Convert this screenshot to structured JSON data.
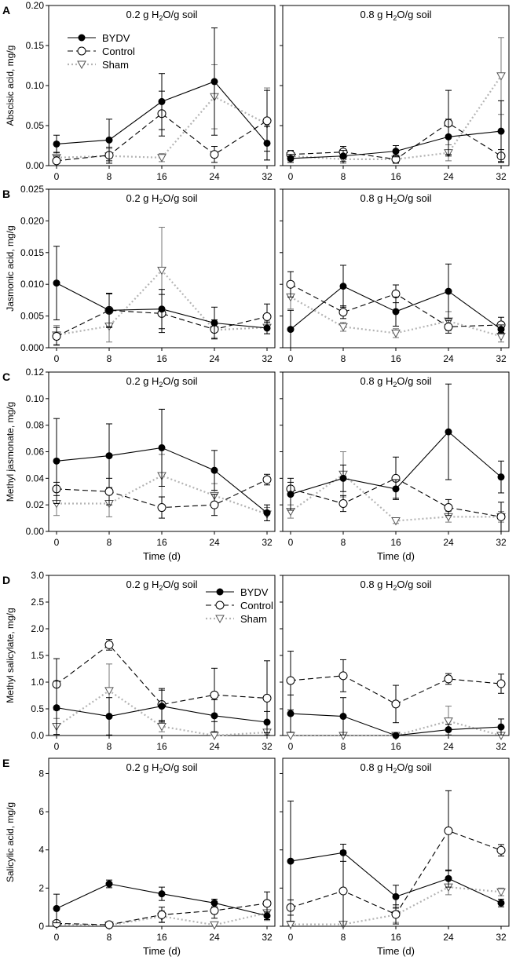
{
  "figure": {
    "x_axis_label": "Time (d)",
    "legend_labels": [
      "BYDV",
      "Control",
      "Sham"
    ]
  },
  "chart_data": [
    {
      "panel": "A",
      "type": "line",
      "ylabel": "Abscisic acid, mg/g",
      "ylim": [
        0,
        0.2
      ],
      "yticks": [
        "0.00",
        "0.05",
        "0.10",
        "0.15",
        "0.20"
      ],
      "x": [
        0,
        8,
        16,
        24,
        32
      ],
      "xlabel": "",
      "legend_in": "left",
      "subplots": [
        {
          "title": "0.2 g H2O/g soil",
          "series": [
            {
              "name": "BYDV",
              "values": [
                0.027,
                0.032,
                0.08,
                0.105,
                0.028
              ],
              "err": [
                0.011,
                0.026,
                0.035,
                0.067,
                0.021
              ]
            },
            {
              "name": "Control",
              "values": [
                0.006,
                0.013,
                0.065,
                0.014,
                0.056
              ],
              "err": [
                0.006,
                0.01,
                0.028,
                0.01,
                0.038
              ]
            },
            {
              "name": "Sham",
              "values": [
                0.01,
                0.012,
                0.01,
                0.086,
                0.052
              ],
              "err": [
                0.007,
                0.009,
                0.005,
                0.04,
                0.045
              ]
            }
          ]
        },
        {
          "title": "0.8 g H2O/g soil",
          "series": [
            {
              "name": "BYDV",
              "values": [
                0.009,
                0.012,
                0.018,
                0.036,
                0.043
              ],
              "err": [
                0.005,
                0.007,
                0.007,
                0.022,
                0.038
              ]
            },
            {
              "name": "Control",
              "values": [
                0.014,
                0.017,
                0.008,
                0.053,
                0.012
              ],
              "err": [
                0.005,
                0.007,
                0.005,
                0.041,
                0.008
              ]
            },
            {
              "name": "Sham",
              "values": [
                0.012,
                0.008,
                0.008,
                0.016,
                0.112
              ],
              "err": [
                0.006,
                0.005,
                0.004,
                0.01,
                0.048
              ]
            }
          ]
        }
      ]
    },
    {
      "panel": "B",
      "type": "line",
      "ylabel": "Jasmonic acid, mg/g",
      "ylim": [
        0,
        0.025
      ],
      "yticks": [
        "0.000",
        "0.005",
        "0.010",
        "0.015",
        "0.020",
        "0.025"
      ],
      "x": [
        0,
        8,
        16,
        24,
        32
      ],
      "xlabel": "",
      "subplots": [
        {
          "title": "0.2 g H2O/g soil",
          "series": [
            {
              "name": "BYDV",
              "values": [
                0.0102,
                0.0059,
                0.0061,
                0.0039,
                0.0031
              ],
              "err": [
                0.0058,
                0.0026,
                0.0031,
                0.0025,
                0.0009
              ]
            },
            {
              "name": "Control",
              "values": [
                0.0018,
                0.0059,
                0.0054,
                0.0029,
                0.0049
              ],
              "err": [
                0.0014,
                0.0027,
                0.003,
                0.0015,
                0.002
              ]
            },
            {
              "name": "Sham",
              "values": [
                0.002,
                0.0034,
                0.0122,
                0.0028,
                0.0032
              ],
              "err": [
                0.0015,
                0.0025,
                0.0068,
                0.0012,
                0.001
              ]
            }
          ]
        },
        {
          "title": "0.8 g H2O/g soil",
          "series": [
            {
              "name": "BYDV",
              "values": [
                0.0029,
                0.0097,
                0.0057,
                0.0089,
                0.0029
              ],
              "err": [
                0.003,
                0.0033,
                0.0023,
                0.0043,
                0.0007
              ]
            },
            {
              "name": "Control",
              "values": [
                0.01,
                0.0056,
                0.0085,
                0.0033,
                0.0036
              ],
              "err": [
                0.002,
                0.001,
                0.0014,
                0.001,
                0.0012
              ]
            },
            {
              "name": "Sham",
              "values": [
                0.008,
                0.0033,
                0.0023,
                0.0042,
                0.0018
              ],
              "err": [
                0.0019,
                0.0007,
                0.0007,
                0.0015,
                0.0009
              ]
            }
          ]
        }
      ]
    },
    {
      "panel": "C",
      "type": "line",
      "ylabel": "Methyl jasmonate, mg/g",
      "ylim": [
        0,
        0.12
      ],
      "yticks": [
        "0.00",
        "0.02",
        "0.04",
        "0.06",
        "0.08",
        "0.10",
        "0.12"
      ],
      "x": [
        0,
        8,
        16,
        24,
        32
      ],
      "xlabel": "Time (d)",
      "subplots": [
        {
          "title": "0.2 g H2O/g soil",
          "series": [
            {
              "name": "BYDV",
              "values": [
                0.053,
                0.057,
                0.063,
                0.046,
                0.014
              ],
              "err": [
                0.032,
                0.024,
                0.029,
                0.015,
                0.006
              ]
            },
            {
              "name": "Control",
              "values": [
                0.032,
                0.03,
                0.018,
                0.02,
                0.039
              ],
              "err": [
                0.005,
                0.01,
                0.008,
                0.008,
                0.004
              ]
            },
            {
              "name": "Sham",
              "values": [
                0.021,
                0.021,
                0.042,
                0.027,
                0.013
              ],
              "err": [
                0.009,
                0.01,
                0.016,
                0.009,
                0.005
              ]
            }
          ]
        },
        {
          "title": "0.8 g H2O/g soil",
          "series": [
            {
              "name": "BYDV",
              "values": [
                0.028,
                0.04,
                0.032,
                0.075,
                0.041
              ],
              "err": [
                0.012,
                0.01,
                0.007,
                0.036,
                0.012
              ]
            },
            {
              "name": "Control",
              "values": [
                0.032,
                0.021,
                0.04,
                0.018,
                0.011
              ],
              "err": [
                0.005,
                0.006,
                0.016,
                0.006,
                0.011
              ]
            },
            {
              "name": "Sham",
              "values": [
                0.015,
                0.043,
                0.008,
                0.011,
                0.011
              ],
              "err": [
                0.005,
                0.017,
                0.002,
                0.004,
                0.004
              ]
            }
          ]
        }
      ]
    },
    {
      "panel": "D",
      "type": "line",
      "ylabel": "Methyl salicylate, mg/g",
      "ylim": [
        0,
        3.0
      ],
      "yticks": [
        "0.0",
        "0.5",
        "1.0",
        "1.5",
        "2.0",
        "2.5",
        "3.0"
      ],
      "x": [
        0,
        8,
        16,
        24,
        32
      ],
      "xlabel": "",
      "legend_in": "left-right",
      "subplots": [
        {
          "title": "0.2 g H2O/g soil",
          "series": [
            {
              "name": "BYDV",
              "values": [
                0.52,
                0.36,
                0.55,
                0.37,
                0.25
              ],
              "err": [
                0.5,
                0.35,
                0.3,
                0.3,
                0.2
              ]
            },
            {
              "name": "Control",
              "values": [
                0.96,
                1.7,
                0.58,
                0.76,
                0.7
              ],
              "err": [
                0.48,
                0.1,
                0.3,
                0.5,
                0.7
              ]
            },
            {
              "name": "Sham",
              "values": [
                0.17,
                0.84,
                0.17,
                0.0,
                0.06
              ],
              "err": [
                0.15,
                0.5,
                0.1,
                0.02,
                0.05
              ]
            }
          ]
        },
        {
          "title": "0.8 g H2O/g soil",
          "series": [
            {
              "name": "BYDV",
              "values": [
                0.41,
                0.36,
                0.0,
                0.11,
                0.16
              ],
              "err": [
                0.35,
                0.35,
                0.02,
                0.1,
                0.15
              ]
            },
            {
              "name": "Control",
              "values": [
                1.03,
                1.12,
                0.59,
                1.06,
                0.97
              ],
              "err": [
                0.55,
                0.3,
                0.35,
                0.1,
                0.18
              ]
            },
            {
              "name": "Sham",
              "values": [
                0.0,
                0.0,
                0.0,
                0.27,
                0.0
              ],
              "err": [
                0.02,
                0.02,
                0.02,
                0.28,
                0.02
              ]
            }
          ]
        }
      ]
    },
    {
      "panel": "E",
      "type": "line",
      "ylabel": "Salicylic acid, mg/g",
      "ylim": [
        0,
        8.8
      ],
      "yticks": [
        "0",
        "2",
        "4",
        "6",
        "8"
      ],
      "x": [
        0,
        8,
        16,
        24,
        32
      ],
      "xlabel": "Time (d)",
      "subplots": [
        {
          "title": "0.2 g H2O/g soil",
          "series": [
            {
              "name": "BYDV",
              "values": [
                0.93,
                2.22,
                1.7,
                1.22,
                0.55
              ],
              "err": [
                0.75,
                0.2,
                0.35,
                0.2,
                0.2
              ]
            },
            {
              "name": "Control",
              "values": [
                0.15,
                0.08,
                0.6,
                0.82,
                1.2
              ],
              "err": [
                0.1,
                0.05,
                0.4,
                0.4,
                0.6
              ]
            },
            {
              "name": "Sham",
              "values": [
                0.1,
                0.05,
                0.52,
                0.07,
                0.7
              ],
              "err": [
                0.08,
                0.05,
                0.3,
                0.05,
                0.4
              ]
            }
          ]
        },
        {
          "title": "0.8 g H2O/g soil",
          "series": [
            {
              "name": "BYDV",
              "values": [
                3.41,
                3.85,
                1.55,
                2.5,
                1.22
              ],
              "err": [
                3.15,
                0.45,
                0.6,
                0.45,
                0.2
              ]
            },
            {
              "name": "Control",
              "values": [
                0.98,
                1.85,
                0.62,
                5.0,
                3.98
              ],
              "err": [
                0.4,
                2.1,
                0.5,
                2.1,
                0.3
              ]
            },
            {
              "name": "Sham",
              "values": [
                0.1,
                0.1,
                0.6,
                2.05,
                1.8
              ],
              "err": [
                0.05,
                0.1,
                0.4,
                0.4,
                0.2
              ]
            }
          ]
        }
      ]
    }
  ]
}
